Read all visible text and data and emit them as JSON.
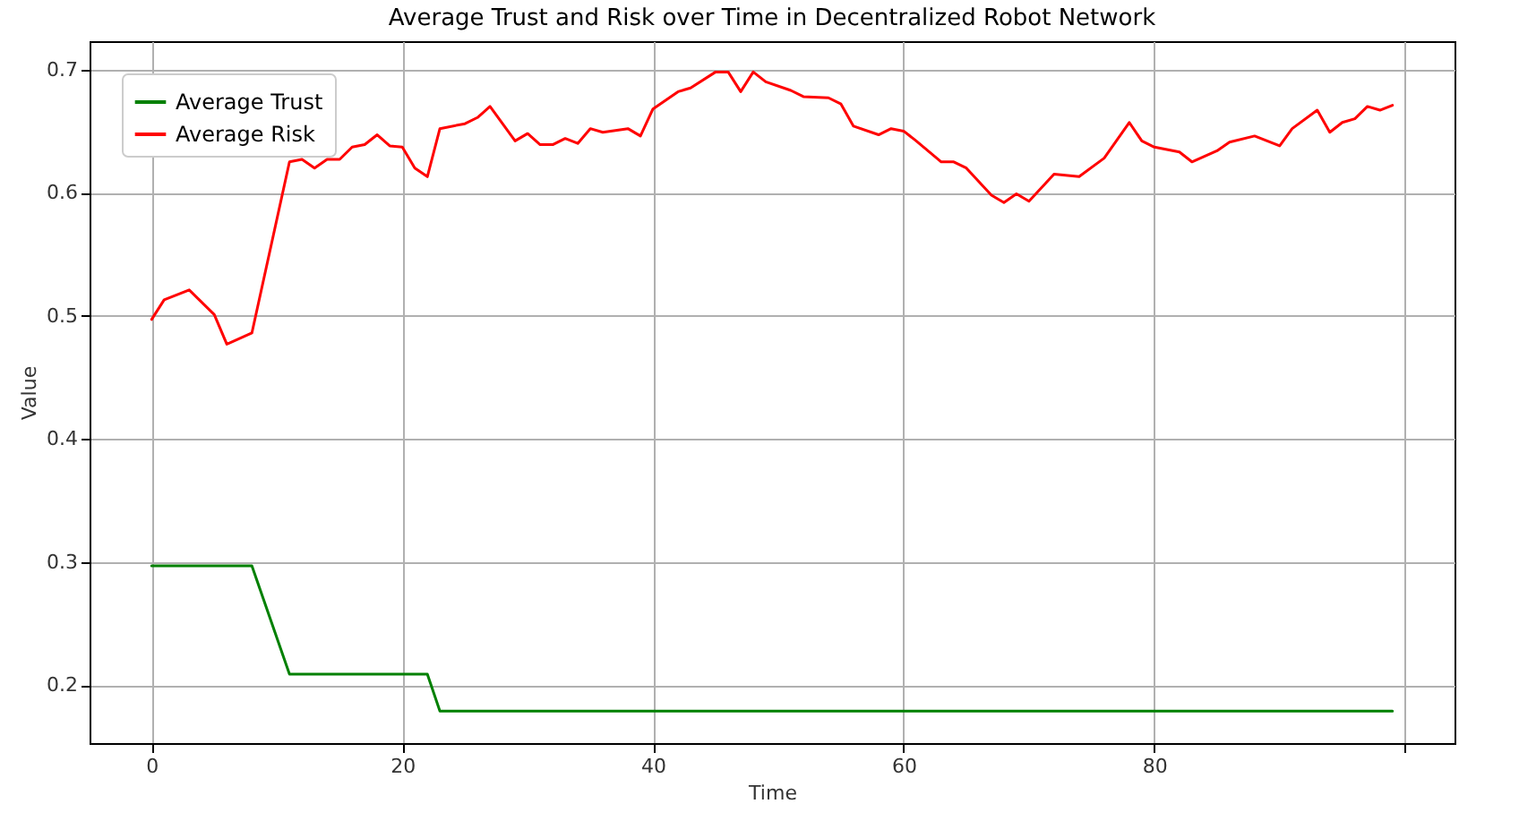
{
  "chart_data": {
    "type": "line",
    "title": "Average Trust and Risk over Time in Decentralized Robot Network",
    "xlabel": "Time",
    "ylabel": "Value",
    "xlim": [
      -4.95,
      103.95
    ],
    "xticks": [
      0,
      20,
      40,
      60,
      80,
      {
        "value": 100,
        "label": null
      }
    ],
    "ylim": [
      0.153,
      0.723
    ],
    "yticks": [
      0.2,
      0.3,
      0.4,
      0.5,
      0.6,
      0.7
    ],
    "grid": true,
    "legend": "top left",
    "line_style": "solid",
    "series": [
      {
        "name": "Average Trust",
        "color": "#008000",
        "x": [
          0,
          8,
          11,
          22,
          23,
          99
        ],
        "values": [
          0.297,
          0.297,
          0.209,
          0.209,
          0.179,
          0.179
        ]
      },
      {
        "name": "Average Risk",
        "color": "#ff0000",
        "x": [
          0,
          1,
          3,
          5,
          6,
          8,
          11,
          12,
          13,
          14,
          15,
          16,
          17,
          18,
          19,
          20,
          21,
          22,
          23,
          25,
          26,
          27,
          29,
          30,
          31,
          32,
          33,
          34,
          35,
          36,
          38,
          39,
          40,
          42,
          43,
          45,
          46,
          47,
          48,
          49,
          51,
          52,
          54,
          55,
          56,
          58,
          59,
          60,
          61,
          63,
          64,
          65,
          67,
          68,
          69,
          70,
          72,
          74,
          76,
          78,
          79,
          80,
          82,
          83,
          85,
          86,
          88,
          90,
          91,
          93,
          94,
          95,
          96,
          97,
          98,
          99
        ],
        "values": [
          0.497,
          0.513,
          0.521,
          0.501,
          0.477,
          0.486,
          0.625,
          0.627,
          0.62,
          0.627,
          0.627,
          0.637,
          0.639,
          0.647,
          0.638,
          0.637,
          0.62,
          0.613,
          0.652,
          0.656,
          0.661,
          0.67,
          0.642,
          0.648,
          0.639,
          0.639,
          0.644,
          0.64,
          0.652,
          0.649,
          0.652,
          0.646,
          0.668,
          0.682,
          0.685,
          0.698,
          0.698,
          0.682,
          0.698,
          0.69,
          0.683,
          0.678,
          0.677,
          0.672,
          0.654,
          0.647,
          0.652,
          0.65,
          0.642,
          0.625,
          0.625,
          0.62,
          0.598,
          0.592,
          0.599,
          0.593,
          0.615,
          0.613,
          0.628,
          0.657,
          0.642,
          0.637,
          0.633,
          0.625,
          0.634,
          0.641,
          0.646,
          0.638,
          0.652,
          0.667,
          0.649,
          0.657,
          0.66,
          0.67,
          0.667,
          0.671
        ]
      }
    ]
  }
}
